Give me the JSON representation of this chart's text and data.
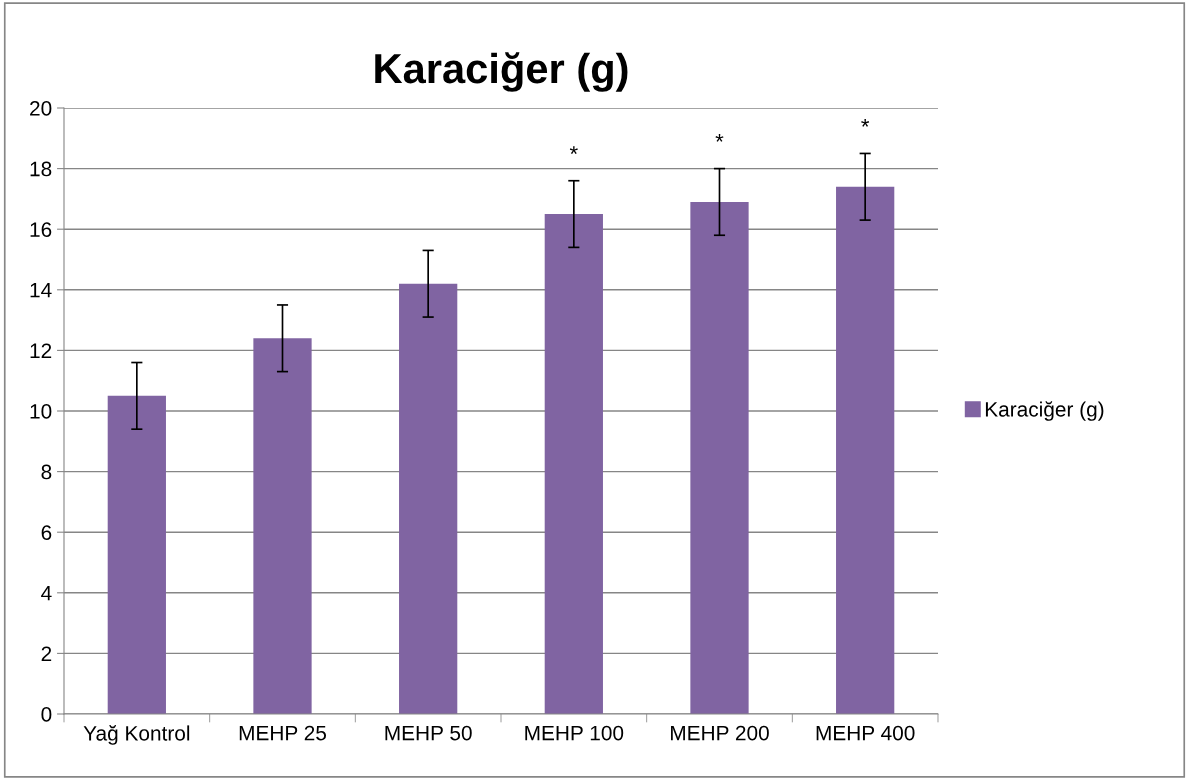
{
  "chart_data": {
    "type": "bar",
    "title": "Karaciğer (g)",
    "categories": [
      "Yağ Kontrol",
      "MEHP 25",
      "MEHP 50",
      "MEHP 100",
      "MEHP 200",
      "MEHP 400"
    ],
    "series": [
      {
        "name": "Karaciğer (g)",
        "color": "#8064a2",
        "values": [
          10.5,
          12.4,
          14.2,
          16.5,
          16.9,
          17.4
        ],
        "errors": [
          1.1,
          1.1,
          1.1,
          1.1,
          1.1,
          1.1
        ]
      }
    ],
    "ylim": [
      0,
      20
    ],
    "yticks": [
      0,
      2,
      4,
      6,
      8,
      10,
      12,
      14,
      16,
      18,
      20
    ],
    "grid": "y",
    "legend": "right",
    "annotations": [
      "*",
      "*",
      "*"
    ]
  }
}
